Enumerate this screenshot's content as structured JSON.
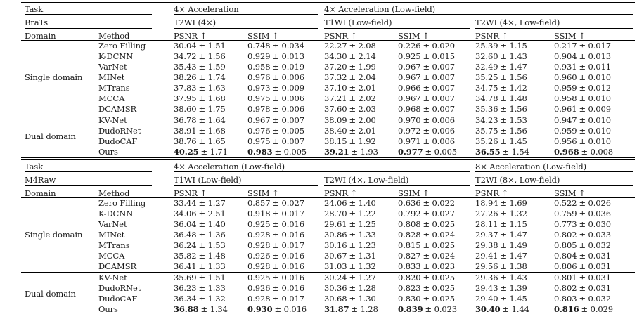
{
  "page": {
    "background": "#ffffff",
    "text_color": "#1b1b1b",
    "rule_color": "#000000"
  },
  "tables": [
    {
      "task_spans": [
        "Task",
        "4× Acceleration",
        "4× Acceleration (Low-field)"
      ],
      "dataset_spans": [
        "BraTs",
        "T2WI (4×)",
        "T1WI (Low-field)",
        "T2WI (4×, Low-field)"
      ],
      "columns": [
        "Domain",
        "Method",
        "PSNR ↑",
        "SSIM ↑",
        "PSNR ↑",
        "SSIM ↑",
        "PSNR ↑",
        "SSIM ↑"
      ],
      "groups": [
        {
          "domain": "Single domain",
          "rows": [
            {
              "method": "Zero Filling",
              "values": [
                [
                  "30.04",
                  "± 1.51"
                ],
                [
                  "0.748",
                  "± 0.034"
                ],
                [
                  "22.27",
                  "± 2.08"
                ],
                [
                  "0.226",
                  "± 0.020"
                ],
                [
                  "25.39",
                  "± 1.15"
                ],
                [
                  "0.217",
                  "± 0.017"
                ]
              ]
            },
            {
              "method": "K-DCNN",
              "values": [
                [
                  "34.72",
                  "± 1.56"
                ],
                [
                  "0.929",
                  "± 0.013"
                ],
                [
                  "34.30",
                  "± 2.14"
                ],
                [
                  "0.925",
                  "± 0.015"
                ],
                [
                  "32.60",
                  "± 1.43"
                ],
                [
                  "0.904",
                  "± 0.013"
                ]
              ]
            },
            {
              "method": "VarNet",
              "values": [
                [
                  "35.43",
                  "± 1.59"
                ],
                [
                  "0.958",
                  "± 0.019"
                ],
                [
                  "37.20",
                  "± 1.99"
                ],
                [
                  "0.967",
                  "± 0.007"
                ],
                [
                  "32.49",
                  "± 1.47"
                ],
                [
                  "0.931",
                  "± 0.011"
                ]
              ]
            },
            {
              "method": "MINet",
              "values": [
                [
                  "38.26",
                  "± 1.74"
                ],
                [
                  "0.976",
                  "± 0.006"
                ],
                [
                  "37.32",
                  "± 2.04"
                ],
                [
                  "0.967",
                  "± 0.007"
                ],
                [
                  "35.25",
                  "± 1.56"
                ],
                [
                  "0.960",
                  "± 0.010"
                ]
              ]
            },
            {
              "method": "MTrans",
              "values": [
                [
                  "37.83",
                  "± 1.63"
                ],
                [
                  "0.973",
                  "± 0.009"
                ],
                [
                  "37.10",
                  "± 2.01"
                ],
                [
                  "0.966",
                  "± 0.007"
                ],
                [
                  "34.75",
                  "± 1.42"
                ],
                [
                  "0.959",
                  "± 0.012"
                ]
              ]
            },
            {
              "method": "MCCA",
              "values": [
                [
                  "37.95",
                  "± 1.68"
                ],
                [
                  "0.975",
                  "± 0.006"
                ],
                [
                  "37.21",
                  "± 2.02"
                ],
                [
                  "0.967",
                  "± 0.007"
                ],
                [
                  "34.78",
                  "± 1.48"
                ],
                [
                  "0.958",
                  "± 0.010"
                ]
              ]
            },
            {
              "method": "DCAMSR",
              "values": [
                [
                  "38.60",
                  "± 1.75"
                ],
                [
                  "0.978",
                  "± 0.006"
                ],
                [
                  "37.60",
                  "± 2.03"
                ],
                [
                  "0.968",
                  "± 0.007"
                ],
                [
                  "35.36",
                  "± 1.56"
                ],
                [
                  "0.961",
                  "± 0.009"
                ]
              ]
            }
          ]
        },
        {
          "domain": "Dual domain",
          "rows": [
            {
              "method": "KV-Net",
              "values": [
                [
                  "36.78",
                  "± 1.64"
                ],
                [
                  "0.967",
                  "± 0.007"
                ],
                [
                  "38.09",
                  "± 2.00"
                ],
                [
                  "0.970",
                  "± 0.006"
                ],
                [
                  "34.23",
                  "± 1.53"
                ],
                [
                  "0.947",
                  "± 0.010"
                ]
              ]
            },
            {
              "method": "DudoRNet",
              "values": [
                [
                  "38.91",
                  "± 1.68"
                ],
                [
                  "0.976",
                  "± 0.005"
                ],
                [
                  "38.40",
                  "± 2.01"
                ],
                [
                  "0.972",
                  "± 0.006"
                ],
                [
                  "35.75",
                  "± 1.56"
                ],
                [
                  "0.959",
                  "± 0.010"
                ]
              ]
            },
            {
              "method": "DudoCAF",
              "values": [
                [
                  "38.76",
                  "± 1.65"
                ],
                [
                  "0.975",
                  "± 0.007"
                ],
                [
                  "38.15",
                  "± 1.92"
                ],
                [
                  "0.971",
                  "± 0.006"
                ],
                [
                  "35.26",
                  "± 1.45"
                ],
                [
                  "0.956",
                  "± 0.010"
                ]
              ]
            },
            {
              "method": "Ours",
              "best": true,
              "values": [
                [
                  "40.25",
                  "± 1.71"
                ],
                [
                  "0.983",
                  "± 0.005"
                ],
                [
                  "39.21",
                  "± 1.93"
                ],
                [
                  "0.977",
                  "± 0.005"
                ],
                [
                  "36.55",
                  "± 1.54"
                ],
                [
                  "0.968",
                  "± 0.008"
                ]
              ]
            }
          ]
        }
      ]
    },
    {
      "task_spans": [
        "Task",
        "4× Acceleration (Low-field)",
        "8× Acceleration (Low-field)"
      ],
      "dataset_spans": [
        "M4Raw",
        "T1WI (Low-field)",
        "T2WI (4×, Low-field)",
        "T2WI (8×, Low-field)"
      ],
      "columns": [
        "Domain",
        "Method",
        "PSNR ↑",
        "SSIM ↑",
        "PSNR ↑",
        "SSIM ↑",
        "PSNR ↑",
        "SSIM ↑"
      ],
      "groups": [
        {
          "domain": "Single domain",
          "rows": [
            {
              "method": "Zero Filling",
              "values": [
                [
                  "33.44",
                  "± 1.27"
                ],
                [
                  "0.857",
                  "± 0.027"
                ],
                [
                  "24.06",
                  "± 1.40"
                ],
                [
                  "0.636",
                  "± 0.022"
                ],
                [
                  "18.94",
                  "± 1.69"
                ],
                [
                  "0.522",
                  "± 0.026"
                ]
              ]
            },
            {
              "method": "K-DCNN",
              "values": [
                [
                  "34.06",
                  "± 2.51"
                ],
                [
                  "0.918",
                  "± 0.017"
                ],
                [
                  "28.70",
                  "± 1.22"
                ],
                [
                  "0.792",
                  "± 0.027"
                ],
                [
                  "27.26",
                  "± 1.32"
                ],
                [
                  "0.759",
                  "± 0.036"
                ]
              ]
            },
            {
              "method": "VarNet",
              "values": [
                [
                  "36.04",
                  "± 1.40"
                ],
                [
                  "0.925",
                  "± 0.016"
                ],
                [
                  "29.61",
                  "± 1.25"
                ],
                [
                  "0.808",
                  "± 0.025"
                ],
                [
                  "28.11",
                  "± 1.15"
                ],
                [
                  "0.773",
                  "± 0.030"
                ]
              ]
            },
            {
              "method": "MINet",
              "values": [
                [
                  "36.48",
                  "± 1.36"
                ],
                [
                  "0.928",
                  "± 0.016"
                ],
                [
                  "30.86",
                  "± 1.33"
                ],
                [
                  "0.828",
                  "± 0.024"
                ],
                [
                  "29.37",
                  "± 1.47"
                ],
                [
                  "0.802",
                  "± 0.033"
                ]
              ]
            },
            {
              "method": "MTrans",
              "values": [
                [
                  "36.24",
                  "± 1.53"
                ],
                [
                  "0.928",
                  "± 0.017"
                ],
                [
                  "30.16",
                  "± 1.23"
                ],
                [
                  "0.815",
                  "± 0.025"
                ],
                [
                  "29.38",
                  "± 1.49"
                ],
                [
                  "0.805",
                  "± 0.032"
                ]
              ]
            },
            {
              "method": "MCCA",
              "values": [
                [
                  "35.82",
                  "± 1.48"
                ],
                [
                  "0.926",
                  "± 0.016"
                ],
                [
                  "30.67",
                  "± 1.31"
                ],
                [
                  "0.827",
                  "± 0.024"
                ],
                [
                  "29.41",
                  "± 1.47"
                ],
                [
                  "0.804",
                  "± 0.031"
                ]
              ]
            },
            {
              "method": "DCAMSR",
              "values": [
                [
                  "36.41",
                  "± 1.33"
                ],
                [
                  "0.928",
                  "± 0.016"
                ],
                [
                  "31.03",
                  "± 1.32"
                ],
                [
                  "0.833",
                  "± 0.023"
                ],
                [
                  "29.56",
                  "± 1.38"
                ],
                [
                  "0.806",
                  "± 0.031"
                ]
              ]
            }
          ]
        },
        {
          "domain": "Dual domain",
          "rows": [
            {
              "method": "KV-Net",
              "values": [
                [
                  "35.69",
                  "± 1.51"
                ],
                [
                  "0.925",
                  "± 0.016"
                ],
                [
                  "30.24",
                  "± 1.27"
                ],
                [
                  "0.820",
                  "± 0.025"
                ],
                [
                  "29.36",
                  "± 1.43"
                ],
                [
                  "0.801",
                  "± 0.031"
                ]
              ]
            },
            {
              "method": "DudoRNet",
              "values": [
                [
                  "36.23",
                  "± 1.33"
                ],
                [
                  "0.926",
                  "± 0.016"
                ],
                [
                  "30.36",
                  "± 1.28"
                ],
                [
                  "0.823",
                  "± 0.025"
                ],
                [
                  "29.43",
                  "± 1.39"
                ],
                [
                  "0.802",
                  "± 0.031"
                ]
              ]
            },
            {
              "method": "DudoCAF",
              "values": [
                [
                  "36.34",
                  "± 1.32"
                ],
                [
                  "0.928",
                  "± 0.017"
                ],
                [
                  "30.68",
                  "± 1.30"
                ],
                [
                  "0.830",
                  "± 0.025"
                ],
                [
                  "29.40",
                  "± 1.45"
                ],
                [
                  "0.803",
                  "± 0.032"
                ]
              ]
            },
            {
              "method": "Ours",
              "best": true,
              "values": [
                [
                  "36.88",
                  "± 1.34"
                ],
                [
                  "0.930",
                  "± 0.016"
                ],
                [
                  "31.87",
                  "± 1.28"
                ],
                [
                  "0.839",
                  "± 0.023"
                ],
                [
                  "30.40",
                  "± 1.44"
                ],
                [
                  "0.816",
                  "± 0.029"
                ]
              ]
            }
          ]
        }
      ]
    }
  ]
}
